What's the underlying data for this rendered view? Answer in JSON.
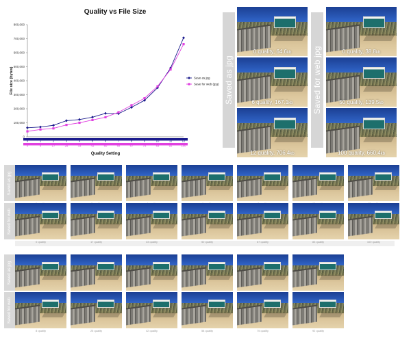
{
  "chart_data": {
    "type": "line",
    "title": "Quality vs File Size",
    "xlabel": "Quality Setting",
    "ylabel": "File size (bytes)",
    "ylim": [
      0,
      800000
    ],
    "yticks": [
      "800,000",
      "700,000",
      "600,000",
      "500,000",
      "400,000",
      "300,000",
      "200,000",
      "100,000",
      "0"
    ],
    "x_index": [
      0,
      1,
      2,
      3,
      4,
      5,
      6,
      7,
      8,
      9,
      10,
      11,
      12
    ],
    "x_labels_jpg": [
      "0",
      "1",
      "2",
      "3",
      "4",
      "5",
      "6",
      "7",
      "8",
      "9",
      "10",
      "11",
      "12"
    ],
    "x_labels_web": [
      "0",
      "8",
      "17",
      "25",
      "33",
      "42",
      "50",
      "58",
      "67",
      "75",
      "83",
      "92",
      "100"
    ],
    "series": [
      {
        "name": "Save as jpg",
        "color": "#1a1a8c",
        "marker": "diamond",
        "values": [
          64600,
          70000,
          82000,
          115000,
          123000,
          140000,
          167100,
          165000,
          210000,
          260000,
          350000,
          490000,
          706400
        ]
      },
      {
        "name": "Save for web (jpg)",
        "color": "#e040e0",
        "marker": "square",
        "values": [
          38800,
          52000,
          60000,
          85000,
          100000,
          120000,
          139500,
          175000,
          225000,
          275000,
          360000,
          480000,
          660400
        ]
      }
    ],
    "legend": "right",
    "grid": false
  },
  "top_panel": {
    "left_label": "Saved as jpg",
    "right_label": "Saved for web jpg",
    "left_captions": [
      {
        "text": "0 quality, 64.6",
        "unit": "kb"
      },
      {
        "text": "6 quality, 167.1",
        "unit": "kb"
      },
      {
        "text": "12 quality, 706.4",
        "unit": "kb"
      }
    ],
    "right_captions": [
      {
        "text": "0 quality, 38.8",
        "unit": "kb"
      },
      {
        "text": "50 quality, 139.5",
        "unit": "kb"
      },
      {
        "text": "100 quality, 660.4",
        "unit": "kb"
      }
    ]
  },
  "grid_rows": [
    {
      "label": "Saved as jpg",
      "captions": [
        "0 quality",
        "2 quality",
        "4 quality",
        "6 quality",
        "8 quality",
        "10 quality",
        "12 quality"
      ]
    },
    {
      "label": "Saved for web",
      "captions": [
        "0 quality",
        "17 quality",
        "33 quality",
        "50 quality",
        "67 quality",
        "83 quality",
        "100 quality"
      ]
    },
    {
      "label": "Saved as jpg",
      "captions": [
        "1 quality",
        "3 quality",
        "5 quality",
        "7 quality",
        "9 quality",
        "11 quality"
      ]
    },
    {
      "label": "Saved for web",
      "captions": [
        "8 quality",
        "25 quality",
        "42 quality",
        "58 quality",
        "75 quality",
        "92 quality"
      ]
    }
  ]
}
